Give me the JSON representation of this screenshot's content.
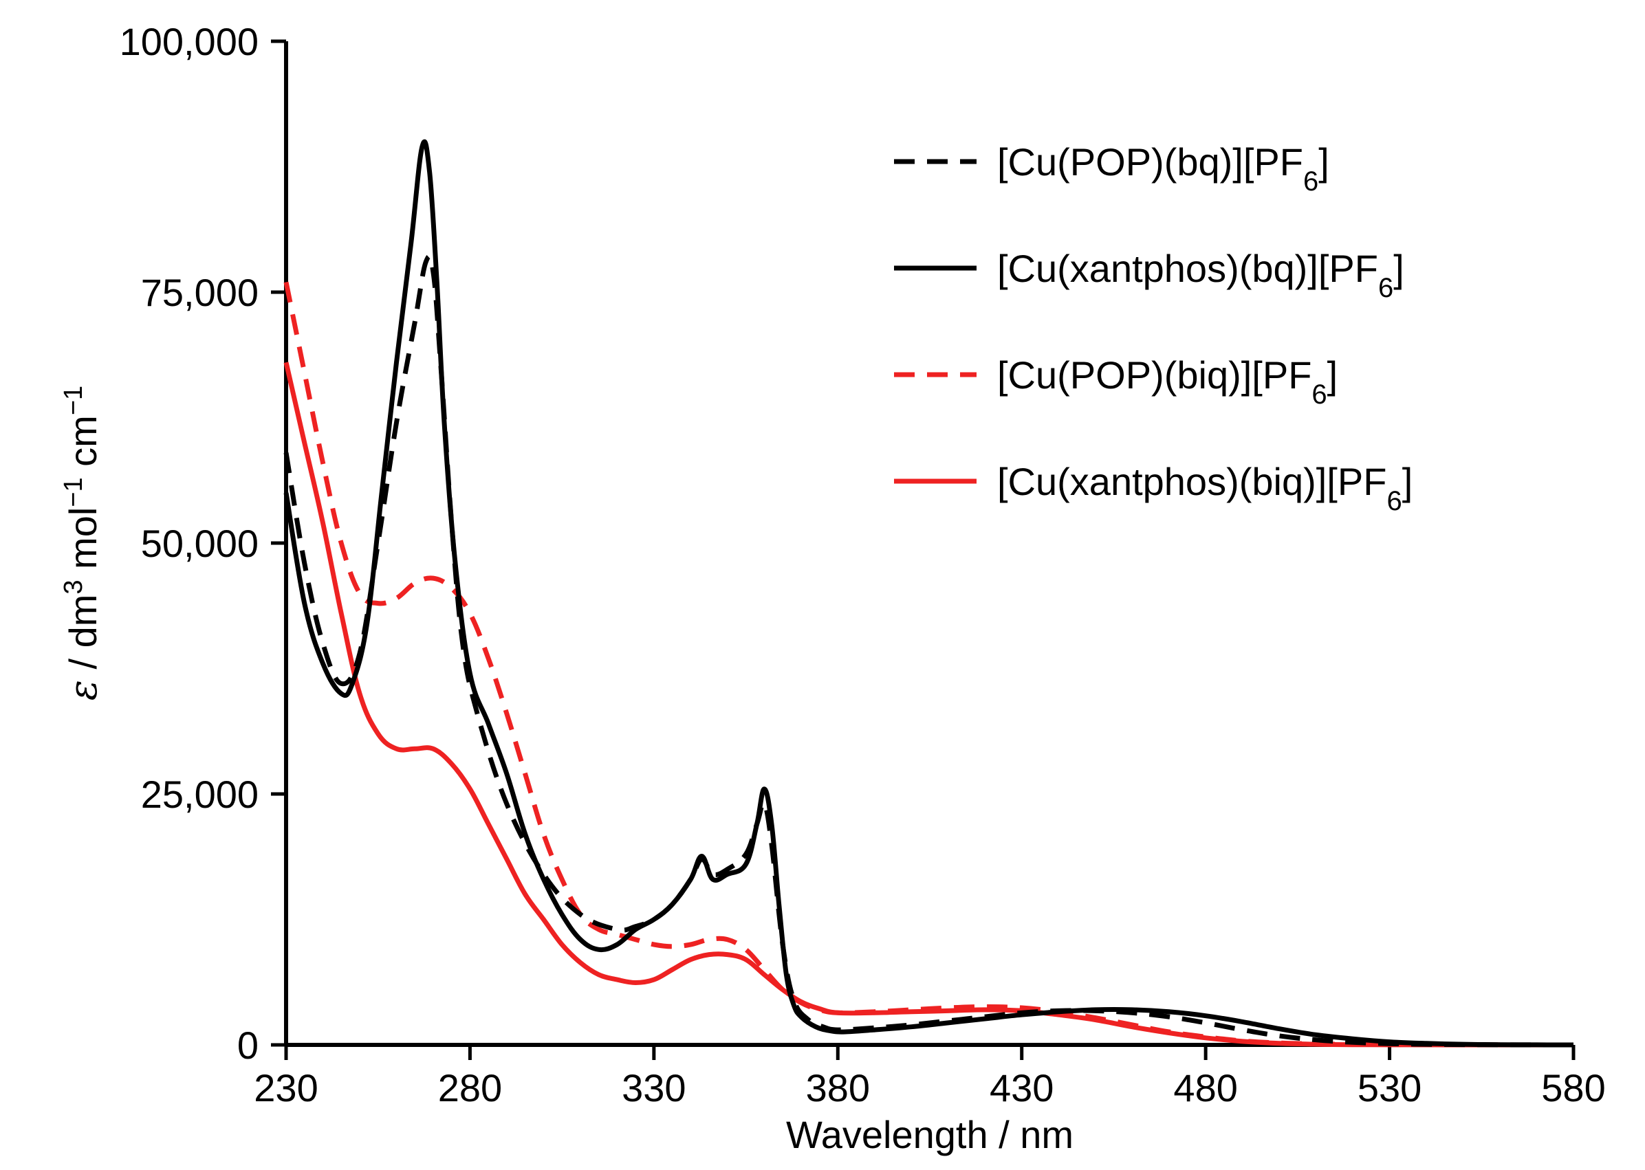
{
  "chart_data": {
    "type": "line",
    "title": "",
    "xlabel": "Wavelength / nm",
    "ylabel_parts": {
      "symbol": "ε",
      "text": " / dm",
      "sup1": "3",
      "text2": " mol",
      "sup2": "−1",
      "text3": " cm",
      "sup3": "−1"
    },
    "xlim": [
      230,
      580
    ],
    "ylim": [
      0,
      100000
    ],
    "xticks": [
      230,
      280,
      330,
      380,
      430,
      480,
      530,
      580
    ],
    "xtick_labels": [
      "230",
      "280",
      "330",
      "380",
      "430",
      "480",
      "530",
      "580"
    ],
    "yticks": [
      0,
      25000,
      50000,
      75000,
      100000
    ],
    "ytick_labels": [
      "0",
      "25,000",
      "50,000",
      "75,000",
      "100,000"
    ],
    "grid": false,
    "legend_position": "top-right",
    "series": [
      {
        "name": "[Cu(POP)(bq)][PF6]",
        "label_main": "[Cu(POP)(bq)][PF",
        "label_sub": "6",
        "label_end": "]",
        "color": "#000000",
        "dashed": true,
        "x": [
          230,
          235,
          240,
          245,
          250,
          255,
          260,
          265,
          268,
          270,
          272,
          275,
          278,
          282,
          290,
          300,
          310,
          320,
          325,
          330,
          335,
          340,
          343,
          346,
          350,
          355,
          358,
          360,
          362,
          365,
          368,
          372,
          376,
          380,
          390,
          400,
          410,
          420,
          430,
          440,
          450,
          460,
          470,
          480,
          490,
          500,
          510,
          520,
          530,
          540,
          550,
          560,
          570,
          580
        ],
        "y": [
          59000,
          48000,
          40000,
          36000,
          39000,
          50000,
          62000,
          72000,
          78000,
          77000,
          68000,
          52000,
          40000,
          33000,
          24000,
          17000,
          13000,
          11500,
          11800,
          12500,
          14000,
          16500,
          18500,
          17000,
          17500,
          19000,
          22000,
          24000,
          20000,
          10000,
          4500,
          2500,
          1800,
          1500,
          1700,
          2000,
          2400,
          2800,
          3200,
          3400,
          3400,
          3200,
          2800,
          2200,
          1500,
          900,
          500,
          250,
          120,
          60,
          30,
          10,
          5,
          0
        ]
      },
      {
        "name": "[Cu(xantphos)(bq)][PF6]",
        "label_main": "[Cu(xantphos)(bq)][PF",
        "label_sub": "6",
        "label_end": "]",
        "color": "#000000",
        "dashed": false,
        "x": [
          230,
          235,
          240,
          245,
          248,
          252,
          256,
          260,
          264,
          267,
          269,
          271,
          273,
          276,
          280,
          285,
          290,
          295,
          300,
          305,
          310,
          315,
          320,
          325,
          330,
          335,
          340,
          343,
          346,
          350,
          355,
          358,
          360,
          362,
          364,
          366,
          368,
          370,
          374,
          378,
          382,
          390,
          400,
          410,
          420,
          430,
          440,
          450,
          460,
          470,
          480,
          490,
          500,
          510,
          520,
          530,
          540,
          550,
          560,
          570,
          580
        ],
        "y": [
          55000,
          44000,
          38000,
          35000,
          36000,
          42000,
          55000,
          68000,
          80000,
          89500,
          87000,
          76000,
          62000,
          48000,
          37000,
          32000,
          27000,
          21000,
          16500,
          13000,
          10500,
          9500,
          10000,
          11500,
          12500,
          14000,
          16500,
          18800,
          16500,
          17000,
          18000,
          22000,
          25500,
          22000,
          14000,
          7000,
          4000,
          2800,
          1800,
          1400,
          1300,
          1500,
          1800,
          2200,
          2600,
          3000,
          3300,
          3500,
          3500,
          3300,
          2900,
          2300,
          1600,
          1000,
          600,
          300,
          150,
          60,
          20,
          5,
          0
        ]
      },
      {
        "name": "[Cu(POP)(biq)][PF6]",
        "label_main": "[Cu(POP)(biq)][PF",
        "label_sub": "6",
        "label_end": "]",
        "color": "#ee2222",
        "dashed": true,
        "x": [
          230,
          235,
          240,
          245,
          250,
          255,
          260,
          265,
          270,
          275,
          280,
          285,
          290,
          295,
          300,
          305,
          310,
          315,
          320,
          325,
          330,
          335,
          340,
          345,
          350,
          355,
          360,
          365,
          370,
          375,
          380,
          390,
          400,
          410,
          420,
          430,
          440,
          450,
          460,
          470,
          480,
          490,
          500,
          510,
          520,
          530,
          540,
          550,
          560,
          570,
          580
        ],
        "y": [
          76000,
          67000,
          58000,
          50000,
          45000,
          44000,
          44500,
          46000,
          46500,
          45500,
          43000,
          38500,
          33000,
          27000,
          21000,
          16500,
          13000,
          11500,
          11000,
          10500,
          10000,
          9800,
          10000,
          10500,
          10500,
          9500,
          7500,
          5500,
          4200,
          3500,
          3200,
          3300,
          3500,
          3700,
          3800,
          3700,
          3300,
          2700,
          2000,
          1300,
          800,
          400,
          200,
          100,
          50,
          30,
          15,
          10,
          5,
          0,
          0
        ]
      },
      {
        "name": "[Cu(xantphos)(biq)][PF6]",
        "label_main": "[Cu(xantphos)(biq)][PF",
        "label_sub": "6",
        "label_end": "]",
        "color": "#ee2222",
        "dashed": false,
        "x": [
          230,
          235,
          240,
          245,
          250,
          255,
          260,
          265,
          270,
          275,
          280,
          285,
          290,
          295,
          300,
          305,
          310,
          315,
          320,
          325,
          330,
          335,
          340,
          345,
          350,
          355,
          360,
          365,
          370,
          375,
          380,
          390,
          400,
          410,
          420,
          430,
          440,
          450,
          460,
          470,
          480,
          490,
          500,
          510,
          520,
          530,
          540,
          550,
          560,
          570,
          580
        ],
        "y": [
          68000,
          60000,
          52000,
          43000,
          35000,
          31000,
          29500,
          29500,
          29500,
          28000,
          25500,
          22000,
          18500,
          15000,
          12500,
          10000,
          8200,
          7000,
          6500,
          6200,
          6500,
          7500,
          8500,
          9000,
          9000,
          8500,
          7000,
          5500,
          4300,
          3600,
          3200,
          3200,
          3300,
          3400,
          3500,
          3400,
          3000,
          2500,
          1800,
          1200,
          700,
          350,
          150,
          60,
          20,
          10,
          5,
          0,
          0,
          0,
          0
        ]
      }
    ]
  }
}
